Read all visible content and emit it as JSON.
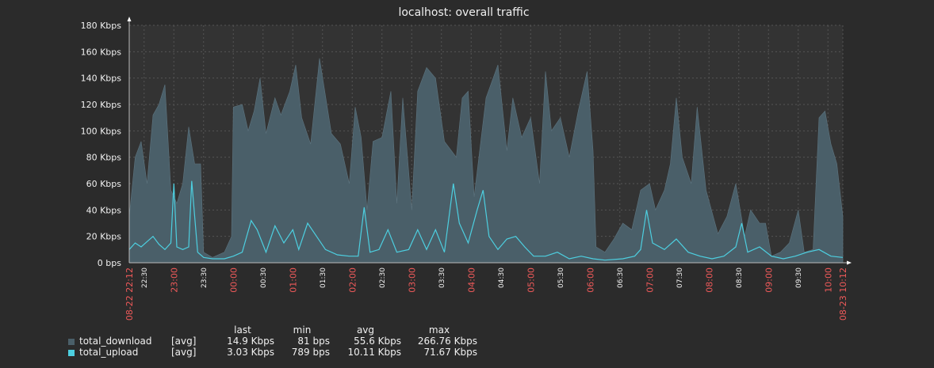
{
  "chart_data": {
    "type": "area",
    "title": "localhost: overall traffic",
    "yunit": "Kbps",
    "ylim": [
      0,
      180
    ],
    "yticks": [
      "0 bps",
      "20 Kbps",
      "40 Kbps",
      "60 Kbps",
      "80 Kbps",
      "100 Kbps",
      "120 Kbps",
      "140 Kbps",
      "160 Kbps",
      "180 Kbps"
    ],
    "xrange": [
      "22:12",
      "10:12"
    ],
    "xticks": [
      {
        "label": "08-22 22:12",
        "t": 0,
        "major": true
      },
      {
        "label": "22:30",
        "t": 0.25,
        "major": false
      },
      {
        "label": "23:00",
        "t": 0.75,
        "major": true
      },
      {
        "label": "23:30",
        "t": 1.25,
        "major": false
      },
      {
        "label": "00:00",
        "t": 1.75,
        "major": true
      },
      {
        "label": "00:30",
        "t": 2.25,
        "major": false
      },
      {
        "label": "01:00",
        "t": 2.75,
        "major": true
      },
      {
        "label": "01:30",
        "t": 3.25,
        "major": false
      },
      {
        "label": "02:00",
        "t": 3.75,
        "major": true
      },
      {
        "label": "02:30",
        "t": 4.25,
        "major": false
      },
      {
        "label": "03:00",
        "t": 4.75,
        "major": true
      },
      {
        "label": "03:30",
        "t": 5.25,
        "major": false
      },
      {
        "label": "04:00",
        "t": 5.75,
        "major": true
      },
      {
        "label": "04:30",
        "t": 6.25,
        "major": false
      },
      {
        "label": "05:00",
        "t": 6.75,
        "major": true
      },
      {
        "label": "05:30",
        "t": 7.25,
        "major": false
      },
      {
        "label": "06:00",
        "t": 7.75,
        "major": true
      },
      {
        "label": "06:30",
        "t": 8.25,
        "major": false
      },
      {
        "label": "07:00",
        "t": 8.75,
        "major": true
      },
      {
        "label": "07:30",
        "t": 9.25,
        "major": false
      },
      {
        "label": "08:00",
        "t": 9.75,
        "major": true
      },
      {
        "label": "08:30",
        "t": 10.25,
        "major": false
      },
      {
        "label": "09:00",
        "t": 10.75,
        "major": true
      },
      {
        "label": "09:30",
        "t": 11.25,
        "major": false
      },
      {
        "label": "10:00",
        "t": 11.75,
        "major": true
      },
      {
        "label": "08-23 10:12",
        "t": 12,
        "major": true
      }
    ],
    "grid": true,
    "legend_position": "bottom-left",
    "series": [
      {
        "name": "total_download",
        "color": "#4a5f69",
        "style": "filled",
        "points": [
          [
            0,
            35
          ],
          [
            0.1,
            80
          ],
          [
            0.2,
            92
          ],
          [
            0.3,
            60
          ],
          [
            0.4,
            112
          ],
          [
            0.5,
            120
          ],
          [
            0.6,
            135
          ],
          [
            0.7,
            55
          ],
          [
            0.8,
            45
          ],
          [
            0.9,
            60
          ],
          [
            1.0,
            103
          ],
          [
            1.1,
            75
          ],
          [
            1.2,
            75
          ],
          [
            1.25,
            8
          ],
          [
            1.4,
            4
          ],
          [
            1.6,
            8
          ],
          [
            1.72,
            20
          ],
          [
            1.75,
            118
          ],
          [
            1.9,
            120
          ],
          [
            2.0,
            100
          ],
          [
            2.1,
            115
          ],
          [
            2.2,
            140
          ],
          [
            2.3,
            98
          ],
          [
            2.45,
            125
          ],
          [
            2.55,
            112
          ],
          [
            2.7,
            130
          ],
          [
            2.8,
            150
          ],
          [
            2.9,
            110
          ],
          [
            3.05,
            90
          ],
          [
            3.2,
            155
          ],
          [
            3.4,
            98
          ],
          [
            3.55,
            90
          ],
          [
            3.7,
            60
          ],
          [
            3.8,
            118
          ],
          [
            3.9,
            95
          ],
          [
            4.0,
            40
          ],
          [
            4.1,
            92
          ],
          [
            4.25,
            95
          ],
          [
            4.4,
            130
          ],
          [
            4.5,
            45
          ],
          [
            4.6,
            125
          ],
          [
            4.75,
            40
          ],
          [
            4.85,
            130
          ],
          [
            5.0,
            148
          ],
          [
            5.15,
            140
          ],
          [
            5.3,
            92
          ],
          [
            5.5,
            80
          ],
          [
            5.6,
            125
          ],
          [
            5.7,
            130
          ],
          [
            5.8,
            50
          ],
          [
            6.0,
            125
          ],
          [
            6.2,
            150
          ],
          [
            6.35,
            85
          ],
          [
            6.45,
            125
          ],
          [
            6.6,
            95
          ],
          [
            6.75,
            110
          ],
          [
            6.9,
            60
          ],
          [
            7.0,
            145
          ],
          [
            7.1,
            100
          ],
          [
            7.25,
            110
          ],
          [
            7.4,
            80
          ],
          [
            7.55,
            115
          ],
          [
            7.7,
            145
          ],
          [
            7.8,
            85
          ],
          [
            7.85,
            12
          ],
          [
            8.0,
            8
          ],
          [
            8.15,
            18
          ],
          [
            8.3,
            30
          ],
          [
            8.45,
            25
          ],
          [
            8.6,
            55
          ],
          [
            8.75,
            60
          ],
          [
            8.85,
            40
          ],
          [
            9.0,
            55
          ],
          [
            9.1,
            75
          ],
          [
            9.2,
            125
          ],
          [
            9.3,
            80
          ],
          [
            9.45,
            60
          ],
          [
            9.55,
            118
          ],
          [
            9.7,
            55
          ],
          [
            9.85,
            30
          ],
          [
            9.9,
            22
          ],
          [
            10.05,
            35
          ],
          [
            10.2,
            60
          ],
          [
            10.35,
            20
          ],
          [
            10.45,
            40
          ],
          [
            10.6,
            30
          ],
          [
            10.7,
            30
          ],
          [
            10.8,
            5
          ],
          [
            10.95,
            8
          ],
          [
            11.1,
            15
          ],
          [
            11.25,
            40
          ],
          [
            11.35,
            8
          ],
          [
            11.5,
            10
          ],
          [
            11.6,
            110
          ],
          [
            11.7,
            115
          ],
          [
            11.8,
            90
          ],
          [
            11.9,
            75
          ],
          [
            12.0,
            35
          ]
        ]
      },
      {
        "name": "total_upload",
        "color": "#4dcfe0",
        "style": "line",
        "points": [
          [
            0,
            10
          ],
          [
            0.1,
            15
          ],
          [
            0.2,
            12
          ],
          [
            0.3,
            16
          ],
          [
            0.4,
            20
          ],
          [
            0.5,
            14
          ],
          [
            0.6,
            10
          ],
          [
            0.7,
            15
          ],
          [
            0.75,
            60
          ],
          [
            0.8,
            12
          ],
          [
            0.9,
            10
          ],
          [
            1.0,
            12
          ],
          [
            1.05,
            62
          ],
          [
            1.15,
            8
          ],
          [
            1.25,
            4
          ],
          [
            1.4,
            3
          ],
          [
            1.6,
            3
          ],
          [
            1.75,
            5
          ],
          [
            1.9,
            8
          ],
          [
            2.05,
            32
          ],
          [
            2.15,
            25
          ],
          [
            2.3,
            8
          ],
          [
            2.45,
            28
          ],
          [
            2.6,
            15
          ],
          [
            2.75,
            25
          ],
          [
            2.85,
            10
          ],
          [
            3.0,
            30
          ],
          [
            3.15,
            20
          ],
          [
            3.3,
            10
          ],
          [
            3.5,
            6
          ],
          [
            3.7,
            5
          ],
          [
            3.85,
            5
          ],
          [
            3.95,
            42
          ],
          [
            4.05,
            8
          ],
          [
            4.2,
            10
          ],
          [
            4.35,
            25
          ],
          [
            4.5,
            8
          ],
          [
            4.7,
            10
          ],
          [
            4.85,
            25
          ],
          [
            5.0,
            10
          ],
          [
            5.15,
            25
          ],
          [
            5.3,
            8
          ],
          [
            5.45,
            60
          ],
          [
            5.55,
            30
          ],
          [
            5.7,
            15
          ],
          [
            5.85,
            40
          ],
          [
            5.95,
            55
          ],
          [
            6.05,
            20
          ],
          [
            6.2,
            10
          ],
          [
            6.35,
            18
          ],
          [
            6.5,
            20
          ],
          [
            6.65,
            12
          ],
          [
            6.8,
            5
          ],
          [
            7.0,
            5
          ],
          [
            7.2,
            8
          ],
          [
            7.4,
            3
          ],
          [
            7.6,
            5
          ],
          [
            7.8,
            3
          ],
          [
            8.0,
            2
          ],
          [
            8.3,
            3
          ],
          [
            8.5,
            5
          ],
          [
            8.6,
            10
          ],
          [
            8.7,
            40
          ],
          [
            8.8,
            15
          ],
          [
            9.0,
            10
          ],
          [
            9.2,
            18
          ],
          [
            9.4,
            8
          ],
          [
            9.6,
            5
          ],
          [
            9.8,
            3
          ],
          [
            10.0,
            5
          ],
          [
            10.2,
            12
          ],
          [
            10.3,
            30
          ],
          [
            10.4,
            8
          ],
          [
            10.6,
            12
          ],
          [
            10.8,
            5
          ],
          [
            11.0,
            3
          ],
          [
            11.2,
            5
          ],
          [
            11.4,
            8
          ],
          [
            11.6,
            10
          ],
          [
            11.8,
            5
          ],
          [
            12.0,
            4
          ]
        ]
      }
    ]
  },
  "legend": {
    "headers": {
      "last": "last",
      "min": "min",
      "avg": "avg",
      "max": "max"
    },
    "rows": [
      {
        "name": "total_download",
        "fn": "[avg]",
        "last": "14.9 Kbps",
        "min": "81 bps",
        "avg": "55.6 Kbps",
        "max": "266.76 Kbps",
        "color": "#4a5f69"
      },
      {
        "name": "total_upload",
        "fn": "[avg]",
        "last": "3.03 Kbps",
        "min": "789 bps",
        "avg": "10.11 Kbps",
        "max": "71.67 Kbps",
        "color": "#4dcfe0"
      }
    ]
  }
}
